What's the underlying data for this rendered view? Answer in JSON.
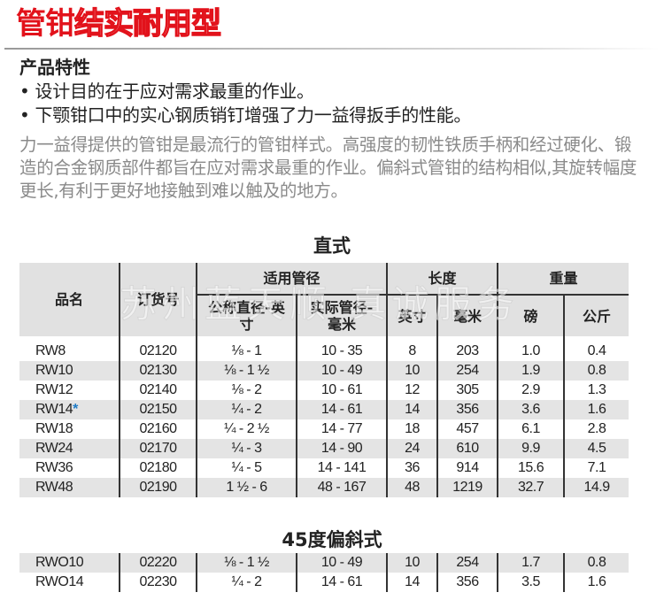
{
  "title": {
    "bold": "管钳",
    "outline": "结实耐用型",
    "color": "#e2121b"
  },
  "features": {
    "heading": "产品特性",
    "bullets": [
      "• 设计目的在于应对需求最重的作业。",
      "• 下颚钳口中的实心钢质销钉增强了力一益得扳手的性能。"
    ]
  },
  "description": "力一益得提供的管钳是最流行的管钳样式。高强度的韧性铁质手柄和经过硬化、锻造的合金钢质部件都旨在应对需求最重的作业。偏斜式管钳的结构相似,其旋转幅度更长,有利于更好地接触到难以触及的地方。",
  "watermark": "苏州蓝天顺  真诚服务",
  "headers": {
    "name": "品名",
    "order": "订货号",
    "pipe": "适用管径",
    "nominal": "公称直径-英寸",
    "actual": "实际管径-毫米",
    "length": "长度",
    "inch": "英寸",
    "mm": "毫米",
    "weight": "重量",
    "lb": "磅",
    "kg": "公斤"
  },
  "straight": {
    "title": "直式",
    "rows": [
      {
        "name": "RW8",
        "star": "",
        "order": "02120",
        "nominal": "⅛ - 1",
        "actual": "10 - 35",
        "inch": "8",
        "mm": "203",
        "lb": "1.0",
        "kg": "0.4"
      },
      {
        "name": "RW10",
        "star": "",
        "order": "02130",
        "nominal": "⅛ - 1 ½",
        "actual": "10 - 49",
        "inch": "10",
        "mm": "254",
        "lb": "1.9",
        "kg": "0.8"
      },
      {
        "name": "RW12",
        "star": "",
        "order": "02140",
        "nominal": "⅛ - 2",
        "actual": "10 - 61",
        "inch": "12",
        "mm": "305",
        "lb": "2.9",
        "kg": "1.3"
      },
      {
        "name": "RW14",
        "star": "*",
        "order": "02150",
        "nominal": "¼ - 2",
        "actual": "14 - 61",
        "inch": "14",
        "mm": "356",
        "lb": "3.6",
        "kg": "1.6"
      },
      {
        "name": "RW18",
        "star": "",
        "order": "02160",
        "nominal": "¼ - 2 ½",
        "actual": "14 - 77",
        "inch": "18",
        "mm": "457",
        "lb": "6.1",
        "kg": "2.8"
      },
      {
        "name": "RW24",
        "star": "",
        "order": "02170",
        "nominal": "¼ - 3",
        "actual": "14 - 90",
        "inch": "24",
        "mm": "610",
        "lb": "9.9",
        "kg": "4.5"
      },
      {
        "name": "RW36",
        "star": "",
        "order": "02180",
        "nominal": "¼ - 5",
        "actual": "14 - 141",
        "inch": "36",
        "mm": "914",
        "lb": "15.6",
        "kg": "7.1"
      },
      {
        "name": "RW48",
        "star": "",
        "order": "02190",
        "nominal": "1 ½ - 6",
        "actual": "48 - 167",
        "inch": "48",
        "mm": "1219",
        "lb": "32.7",
        "kg": "14.9"
      }
    ]
  },
  "offset": {
    "title": "45度偏斜式",
    "rows": [
      {
        "name": "RWO10",
        "star": "",
        "order": "02220",
        "nominal": "⅛ - 1 ½",
        "actual": "10 - 49",
        "inch": "10",
        "mm": "254",
        "lb": "1.7",
        "kg": "0.8"
      },
      {
        "name": "RWO14",
        "star": "",
        "order": "02230",
        "nominal": "¼ - 2",
        "actual": "14 - 61",
        "inch": "14",
        "mm": "356",
        "lb": "3.5",
        "kg": "1.6"
      }
    ]
  }
}
